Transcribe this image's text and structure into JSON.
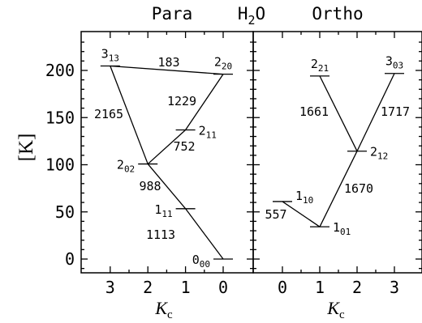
{
  "header": {
    "para": "Para",
    "molecule": {
      "base": "H",
      "sub": "2",
      "tail": "O"
    },
    "ortho": "Ortho"
  },
  "y_axis": {
    "label": "[K]",
    "range": [
      -10,
      235
    ],
    "ticks": [
      "0",
      "50",
      "100",
      "150",
      "200"
    ]
  },
  "para_panel": {
    "x_ticks": [
      "3",
      "2",
      "1",
      "0"
    ],
    "x_label": {
      "base": "K",
      "sub": "c"
    },
    "levels": [
      {
        "id": "3_13",
        "main": "3",
        "sub": "13",
        "kc": 3,
        "energy_K": 204.7
      },
      {
        "id": "2_20",
        "main": "2",
        "sub": "20",
        "kc": 0,
        "energy_K": 196.0
      },
      {
        "id": "2_11",
        "main": "2",
        "sub": "11",
        "kc": 1,
        "energy_K": 136.9
      },
      {
        "id": "2_02",
        "main": "2",
        "sub": "02",
        "kc": 2,
        "energy_K": 100.8
      },
      {
        "id": "1_11",
        "main": "1",
        "sub": "11",
        "kc": 1,
        "energy_K": 53.4
      },
      {
        "id": "0_00",
        "main": "0",
        "sub": "00",
        "kc": 0,
        "energy_K": 0
      }
    ],
    "transitions": [
      {
        "from": "3_13",
        "to": "2_20",
        "label": "183"
      },
      {
        "from": "3_13",
        "to": "2_02",
        "label": "2165"
      },
      {
        "from": "2_20",
        "to": "2_11",
        "label": "1229"
      },
      {
        "from": "2_11",
        "to": "2_02",
        "label": "752"
      },
      {
        "from": "2_02",
        "to": "1_11",
        "label": "988"
      },
      {
        "from": "1_11",
        "to": "0_00",
        "label": "1113"
      }
    ]
  },
  "ortho_panel": {
    "x_ticks": [
      "0",
      "1",
      "2",
      "3"
    ],
    "x_label": {
      "base": "K",
      "sub": "c"
    },
    "levels": [
      {
        "id": "2_21",
        "main": "2",
        "sub": "21",
        "kc": 1,
        "energy_K": 194.1
      },
      {
        "id": "3_03",
        "main": "3",
        "sub": "03",
        "kc": 3,
        "energy_K": 196.8
      },
      {
        "id": "2_12",
        "main": "2",
        "sub": "12",
        "kc": 2,
        "energy_K": 114.4
      },
      {
        "id": "1_10",
        "main": "1",
        "sub": "10",
        "kc": 0,
        "energy_K": 61.0
      },
      {
        "id": "1_01",
        "main": "1",
        "sub": "01",
        "kc": 1,
        "energy_K": 34.2
      }
    ],
    "transitions": [
      {
        "from": "2_21",
        "to": "2_12",
        "label": "1661"
      },
      {
        "from": "3_03",
        "to": "2_12",
        "label": "1717"
      },
      {
        "from": "2_12",
        "to": "1_01",
        "label": "1670"
      },
      {
        "from": "1_10",
        "to": "1_01",
        "label": "557"
      }
    ]
  }
}
